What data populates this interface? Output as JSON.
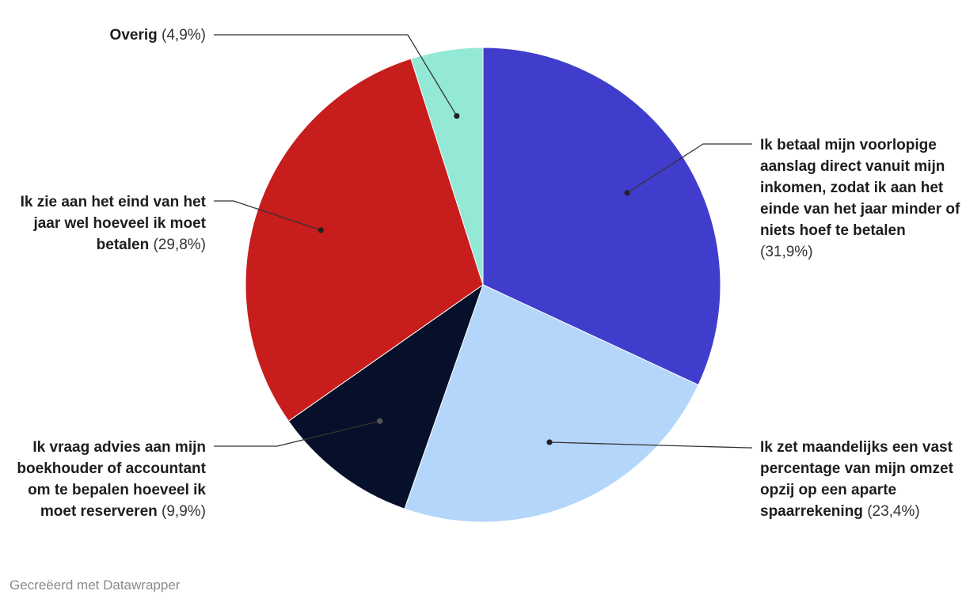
{
  "chart_data": {
    "type": "pie",
    "categories": [
      "Ik betaal mijn voorlopige aanslag direct vanuit mijn inkomen, zodat ik aan het einde van het jaar minder of niets hoef te betalen",
      "Ik zet maandelijks een vast percentage van mijn omzet opzij op een aparte spaarrekening",
      "Ik vraag advies aan mijn boekhouder of accountant om te bepalen hoeveel ik moet reserveren",
      "Ik zie aan het eind van het jaar wel hoeveel ik moet betalen",
      "Overig"
    ],
    "values": [
      31.9,
      23.4,
      9.9,
      29.8,
      4.9
    ],
    "value_labels": [
      "(31,9%)",
      "(23,4%)",
      "(9,9%)",
      "(29,8%)",
      "(4,9%)"
    ],
    "colors": [
      "#413dcc",
      "#b3d6fa",
      "#07102b",
      "#c71d1d",
      "#94e8d6"
    ],
    "start_angle": "12 o'clock",
    "direction": "clockwise",
    "labels_with_leader_lines": true
  },
  "footer": "Gecreëerd met Datawrapper"
}
